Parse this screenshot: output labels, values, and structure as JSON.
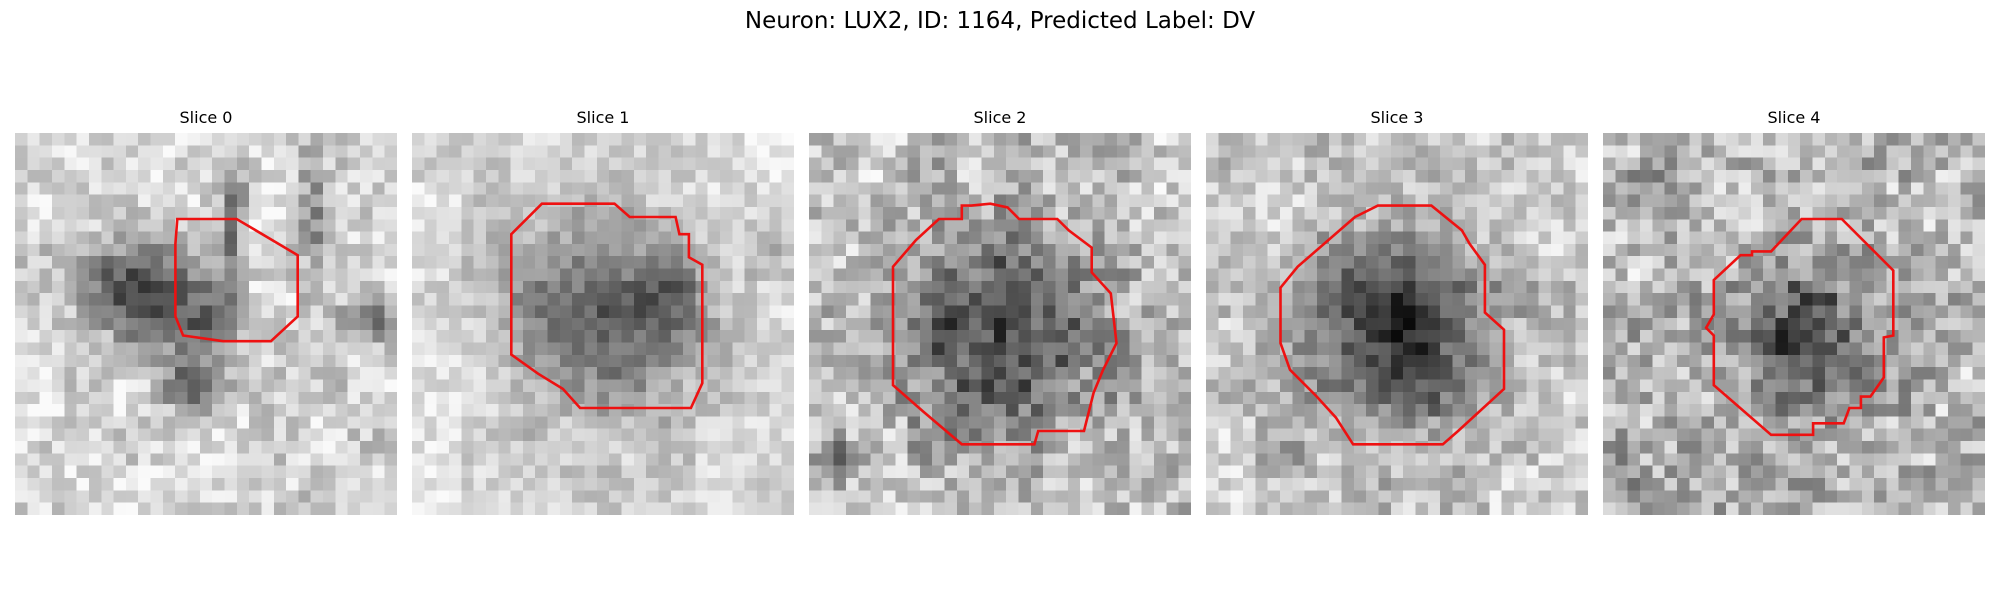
{
  "figure": {
    "title": "Neuron: LUX2, ID: 1164, Predicted Label: DV"
  },
  "colors": {
    "contour": "#ee1111"
  },
  "panels": [
    {
      "title": "Slice 0",
      "image": "slice-0-grayscale"
    },
    {
      "title": "Slice 1",
      "image": "slice-1-grayscale"
    },
    {
      "title": "Slice 2",
      "image": "slice-2-grayscale"
    },
    {
      "title": "Slice 3",
      "image": "slice-3-grayscale"
    },
    {
      "title": "Slice 4",
      "image": "slice-4-grayscale"
    }
  ]
}
